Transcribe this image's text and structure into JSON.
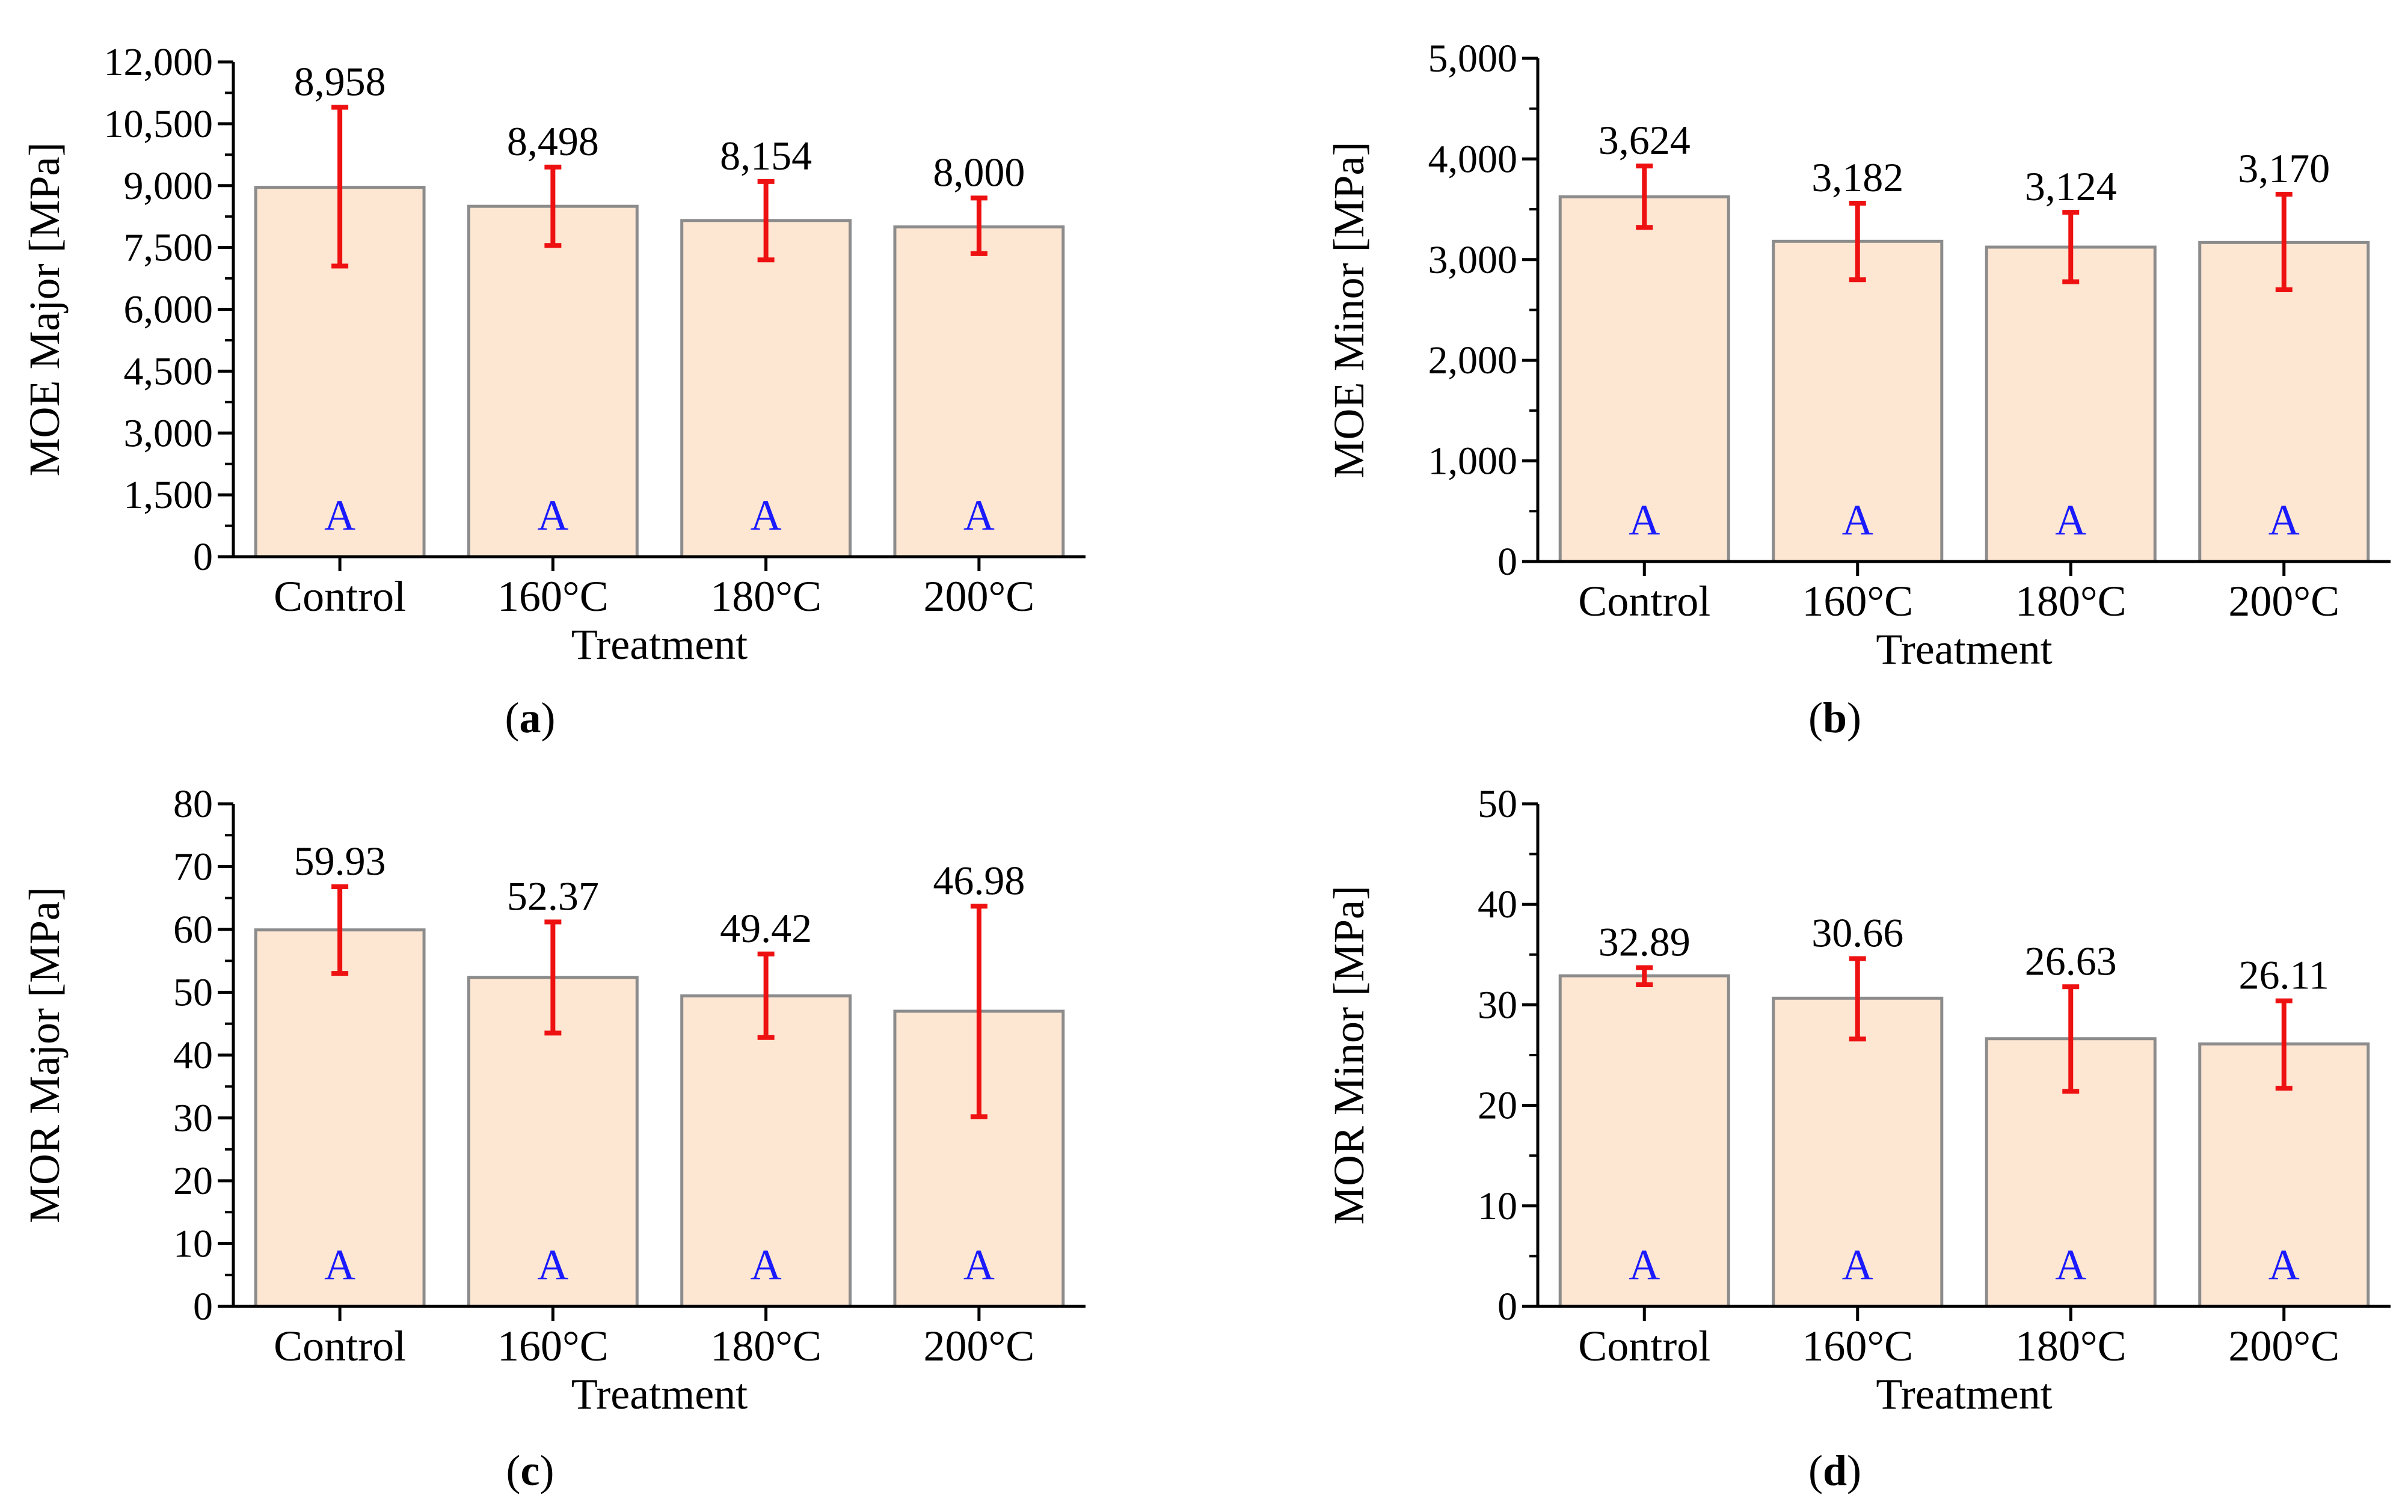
{
  "chart_data": [
    {
      "type": "bar",
      "panel": "a",
      "categories": [
        "Control",
        "160°C",
        "180°C",
        "200°C"
      ],
      "values": [
        8958,
        8498,
        8154,
        8000
      ],
      "value_labels": [
        "8,958",
        "8,498",
        "8,154",
        "8,000"
      ],
      "error_low": [
        7050,
        7550,
        7200,
        7350
      ],
      "error_high": [
        10900,
        9450,
        9100,
        8700
      ],
      "group_letters": [
        "A",
        "A",
        "A",
        "A"
      ],
      "xlabel": "Treatment",
      "ylabel": "MOE Major [MPa]",
      "ylim": [
        0,
        12000
      ],
      "y_ticks": [
        0,
        1500,
        3000,
        4500,
        6000,
        7500,
        9000,
        10500,
        12000
      ],
      "y_tick_labels": [
        "0",
        "1,500",
        "3,000",
        "4,500",
        "6,000",
        "7,500",
        "9,000",
        "10,500",
        "12,000"
      ],
      "caption_open": "(",
      "caption_letter": "a",
      "caption_close": ")"
    },
    {
      "type": "bar",
      "panel": "b",
      "categories": [
        "Control",
        "160°C",
        "180°C",
        "200°C"
      ],
      "values": [
        3624,
        3182,
        3124,
        3170
      ],
      "value_labels": [
        "3,624",
        "3,182",
        "3,124",
        "3,170"
      ],
      "error_low": [
        3320,
        2800,
        2780,
        2700
      ],
      "error_high": [
        3930,
        3560,
        3470,
        3650
      ],
      "group_letters": [
        "A",
        "A",
        "A",
        "A"
      ],
      "xlabel": "Treatment",
      "ylabel": "MOE Minor [MPa]",
      "ylim": [
        0,
        5000
      ],
      "y_ticks": [
        0,
        1000,
        2000,
        3000,
        4000,
        5000
      ],
      "y_tick_labels": [
        "0",
        "1,000",
        "2,000",
        "3,000",
        "4,000",
        "5,000"
      ],
      "caption_open": "(",
      "caption_letter": "b",
      "caption_close": ")"
    },
    {
      "type": "bar",
      "panel": "c",
      "categories": [
        "Control",
        "160°C",
        "180°C",
        "200°C"
      ],
      "values": [
        59.93,
        52.37,
        49.42,
        46.98
      ],
      "value_labels": [
        "59.93",
        "52.37",
        "49.42",
        "46.98"
      ],
      "error_low": [
        53.0,
        43.5,
        42.8,
        30.2
      ],
      "error_high": [
        66.8,
        61.2,
        56.1,
        63.7
      ],
      "group_letters": [
        "A",
        "A",
        "A",
        "A"
      ],
      "xlabel": "Treatment",
      "ylabel": "MOR Major [MPa]",
      "ylim": [
        0,
        80
      ],
      "y_ticks": [
        0,
        10,
        20,
        30,
        40,
        50,
        60,
        70,
        80
      ],
      "y_tick_labels": [
        "0",
        "10",
        "20",
        "30",
        "40",
        "50",
        "60",
        "70",
        "80"
      ],
      "caption_open": "(",
      "caption_letter": "c",
      "caption_close": ")"
    },
    {
      "type": "bar",
      "panel": "d",
      "categories": [
        "Control",
        "160°C",
        "180°C",
        "200°C"
      ],
      "values": [
        32.89,
        30.66,
        26.63,
        26.11
      ],
      "value_labels": [
        "32.89",
        "30.66",
        "26.63",
        "26.11"
      ],
      "error_low": [
        32.0,
        26.6,
        21.4,
        21.7
      ],
      "error_high": [
        33.7,
        34.6,
        31.8,
        30.4
      ],
      "group_letters": [
        "A",
        "A",
        "A",
        "A"
      ],
      "xlabel": "Treatment",
      "ylabel": "MOR Minor [MPa]",
      "ylim": [
        0,
        50
      ],
      "y_ticks": [
        0,
        10,
        20,
        30,
        40,
        50
      ],
      "y_tick_labels": [
        "0",
        "10",
        "20",
        "30",
        "40",
        "50"
      ],
      "caption_open": "(",
      "caption_letter": "d",
      "caption_close": ")"
    }
  ]
}
